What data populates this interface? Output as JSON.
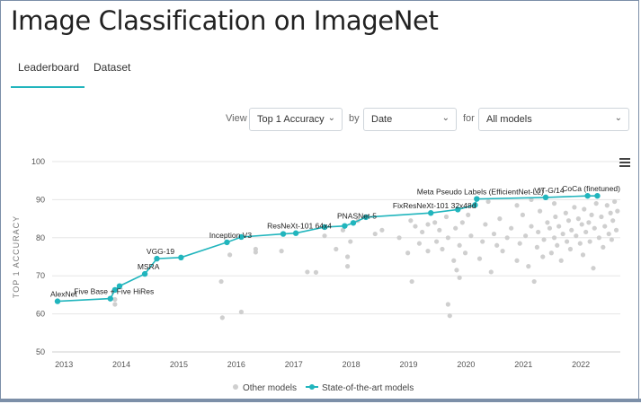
{
  "page": {
    "title": "Image Classification on ImageNet"
  },
  "tabs": [
    {
      "label": "Leaderboard"
    },
    {
      "label": "Dataset"
    }
  ],
  "filters": {
    "view_label": "View",
    "view_value": "Top 1 Accuracy",
    "by_label": "by",
    "by_value": "Date",
    "for_label": "for",
    "for_value": "All models"
  },
  "colors": {
    "sota": "#21b5bd",
    "other": "#cfcfcf",
    "grid": "#e6e6e6"
  },
  "icons": {
    "menu": "hamburger-icon",
    "dropdown": "chevron-down-icon"
  },
  "chart_data": {
    "type": "scatter",
    "title": "",
    "xlabel": "",
    "ylabel": "TOP 1 ACCURACY",
    "xlim": [
      2012.95,
      2022.75
    ],
    "ylim": [
      50,
      100
    ],
    "x_ticks": [
      2013,
      2014,
      2015,
      2016,
      2017,
      2018,
      2019,
      2020,
      2021,
      2022
    ],
    "y_ticks": [
      50,
      60,
      70,
      80,
      90,
      100
    ],
    "grid": true,
    "legend": "bottom",
    "series": [
      {
        "name": "State-of-the-art models",
        "points": [
          {
            "x": 2012.95,
            "y": 63.3,
            "label": "AlexNet"
          },
          {
            "x": 2013.87,
            "y": 64.0,
            "label": "Five Base + Five HiRes"
          },
          {
            "x": 2013.95,
            "y": 66.3
          },
          {
            "x": 2014.03,
            "y": 67.3
          },
          {
            "x": 2014.47,
            "y": 70.5,
            "label": "MSRA"
          },
          {
            "x": 2014.68,
            "y": 74.5,
            "label": "VGG-19"
          },
          {
            "x": 2015.1,
            "y": 74.8
          },
          {
            "x": 2015.9,
            "y": 78.8,
            "label": "Inception V3"
          },
          {
            "x": 2016.15,
            "y": 80.2
          },
          {
            "x": 2016.88,
            "y": 81.0
          },
          {
            "x": 2017.1,
            "y": 81.2,
            "label": "ResNeXt-101 64x4"
          },
          {
            "x": 2017.6,
            "y": 82.8
          },
          {
            "x": 2017.95,
            "y": 83.1
          },
          {
            "x": 2018.1,
            "y": 83.9,
            "label": "PNASNet-5"
          },
          {
            "x": 2018.32,
            "y": 85.4
          },
          {
            "x": 2019.45,
            "y": 86.5,
            "label": "FixResNeXt-101 32x48d"
          },
          {
            "x": 2019.92,
            "y": 87.4
          },
          {
            "x": 2020.22,
            "y": 88.6
          },
          {
            "x": 2020.25,
            "y": 90.2,
            "label": "Meta Pseudo Labels (EfficientNet-L2)"
          },
          {
            "x": 2021.45,
            "y": 90.6,
            "label": "ViT-G/14"
          },
          {
            "x": 2022.18,
            "y": 91.0,
            "label": "CoCa (finetuned)"
          },
          {
            "x": 2022.35,
            "y": 91.0
          }
        ]
      },
      {
        "name": "Other models",
        "points": [
          {
            "x": 2013.95,
            "y": 62.5
          },
          {
            "x": 2013.95,
            "y": 63.8
          },
          {
            "x": 2015.8,
            "y": 68.5
          },
          {
            "x": 2015.82,
            "y": 59.0
          },
          {
            "x": 2015.95,
            "y": 75.5
          },
          {
            "x": 2016.15,
            "y": 60.5
          },
          {
            "x": 2016.4,
            "y": 76.2
          },
          {
            "x": 2016.4,
            "y": 77.0
          },
          {
            "x": 2016.85,
            "y": 76.5
          },
          {
            "x": 2017.3,
            "y": 71.0
          },
          {
            "x": 2017.45,
            "y": 70.9
          },
          {
            "x": 2017.6,
            "y": 80.5
          },
          {
            "x": 2017.8,
            "y": 77.0
          },
          {
            "x": 2017.92,
            "y": 82.0
          },
          {
            "x": 2018.0,
            "y": 72.5
          },
          {
            "x": 2018.0,
            "y": 75.0
          },
          {
            "x": 2018.05,
            "y": 79.0
          },
          {
            "x": 2018.18,
            "y": 84.5
          },
          {
            "x": 2018.48,
            "y": 81.0
          },
          {
            "x": 2018.6,
            "y": 82.0
          },
          {
            "x": 2018.9,
            "y": 80.0
          },
          {
            "x": 2019.05,
            "y": 76.0
          },
          {
            "x": 2019.1,
            "y": 84.5
          },
          {
            "x": 2019.12,
            "y": 68.5
          },
          {
            "x": 2019.18,
            "y": 83.0
          },
          {
            "x": 2019.25,
            "y": 78.5
          },
          {
            "x": 2019.3,
            "y": 81.5
          },
          {
            "x": 2019.4,
            "y": 83.5
          },
          {
            "x": 2019.4,
            "y": 76.5
          },
          {
            "x": 2019.52,
            "y": 84.0
          },
          {
            "x": 2019.55,
            "y": 79.0
          },
          {
            "x": 2019.6,
            "y": 82.0
          },
          {
            "x": 2019.65,
            "y": 77.0
          },
          {
            "x": 2019.72,
            "y": 85.5
          },
          {
            "x": 2019.75,
            "y": 80.0
          },
          {
            "x": 2019.75,
            "y": 62.5
          },
          {
            "x": 2019.78,
            "y": 59.5
          },
          {
            "x": 2019.85,
            "y": 74.0
          },
          {
            "x": 2019.88,
            "y": 82.5
          },
          {
            "x": 2019.9,
            "y": 71.5
          },
          {
            "x": 2019.95,
            "y": 69.5
          },
          {
            "x": 2019.95,
            "y": 78.0
          },
          {
            "x": 2020.0,
            "y": 84.0
          },
          {
            "x": 2020.05,
            "y": 76.0
          },
          {
            "x": 2020.1,
            "y": 86.0
          },
          {
            "x": 2020.15,
            "y": 80.5
          },
          {
            "x": 2020.3,
            "y": 74.5
          },
          {
            "x": 2020.35,
            "y": 79.0
          },
          {
            "x": 2020.4,
            "y": 83.5
          },
          {
            "x": 2020.5,
            "y": 71.0
          },
          {
            "x": 2020.55,
            "y": 81.0
          },
          {
            "x": 2020.6,
            "y": 78.0
          },
          {
            "x": 2020.65,
            "y": 85.0
          },
          {
            "x": 2020.7,
            "y": 76.5
          },
          {
            "x": 2020.78,
            "y": 80.0
          },
          {
            "x": 2020.85,
            "y": 82.5
          },
          {
            "x": 2020.95,
            "y": 74.0
          },
          {
            "x": 2021.0,
            "y": 78.5
          },
          {
            "x": 2021.05,
            "y": 86.0
          },
          {
            "x": 2021.1,
            "y": 80.5
          },
          {
            "x": 2021.15,
            "y": 72.5
          },
          {
            "x": 2021.2,
            "y": 83.0
          },
          {
            "x": 2021.25,
            "y": 68.5
          },
          {
            "x": 2021.3,
            "y": 77.5
          },
          {
            "x": 2021.32,
            "y": 81.5
          },
          {
            "x": 2021.35,
            "y": 87.0
          },
          {
            "x": 2021.4,
            "y": 75.0
          },
          {
            "x": 2021.42,
            "y": 79.5
          },
          {
            "x": 2021.48,
            "y": 84.0
          },
          {
            "x": 2021.52,
            "y": 82.5
          },
          {
            "x": 2021.55,
            "y": 76.0
          },
          {
            "x": 2021.6,
            "y": 80.0
          },
          {
            "x": 2021.62,
            "y": 85.5
          },
          {
            "x": 2021.65,
            "y": 78.0
          },
          {
            "x": 2021.68,
            "y": 83.0
          },
          {
            "x": 2021.72,
            "y": 74.0
          },
          {
            "x": 2021.75,
            "y": 81.0
          },
          {
            "x": 2021.8,
            "y": 86.5
          },
          {
            "x": 2021.82,
            "y": 79.0
          },
          {
            "x": 2021.85,
            "y": 84.5
          },
          {
            "x": 2021.88,
            "y": 77.0
          },
          {
            "x": 2021.9,
            "y": 82.0
          },
          {
            "x": 2021.95,
            "y": 88.0
          },
          {
            "x": 2021.98,
            "y": 80.5
          },
          {
            "x": 2022.02,
            "y": 85.0
          },
          {
            "x": 2022.05,
            "y": 78.5
          },
          {
            "x": 2022.08,
            "y": 83.5
          },
          {
            "x": 2022.1,
            "y": 75.5
          },
          {
            "x": 2022.12,
            "y": 87.5
          },
          {
            "x": 2022.15,
            "y": 81.5
          },
          {
            "x": 2022.2,
            "y": 84.0
          },
          {
            "x": 2022.22,
            "y": 79.0
          },
          {
            "x": 2022.25,
            "y": 86.0
          },
          {
            "x": 2022.28,
            "y": 72.0
          },
          {
            "x": 2022.3,
            "y": 82.5
          },
          {
            "x": 2022.33,
            "y": 89.0
          },
          {
            "x": 2022.38,
            "y": 80.0
          },
          {
            "x": 2022.42,
            "y": 85.5
          },
          {
            "x": 2022.45,
            "y": 77.5
          },
          {
            "x": 2022.48,
            "y": 83.0
          },
          {
            "x": 2022.52,
            "y": 88.5
          },
          {
            "x": 2022.55,
            "y": 81.0
          },
          {
            "x": 2022.58,
            "y": 86.5
          },
          {
            "x": 2022.6,
            "y": 79.5
          },
          {
            "x": 2022.62,
            "y": 84.5
          },
          {
            "x": 2022.65,
            "y": 89.5
          },
          {
            "x": 2022.68,
            "y": 82.0
          },
          {
            "x": 2022.7,
            "y": 87.0
          },
          {
            "x": 2021.2,
            "y": 90.0
          },
          {
            "x": 2020.95,
            "y": 88.5
          },
          {
            "x": 2021.6,
            "y": 89.0
          },
          {
            "x": 2020.45,
            "y": 89.5
          }
        ]
      }
    ]
  }
}
